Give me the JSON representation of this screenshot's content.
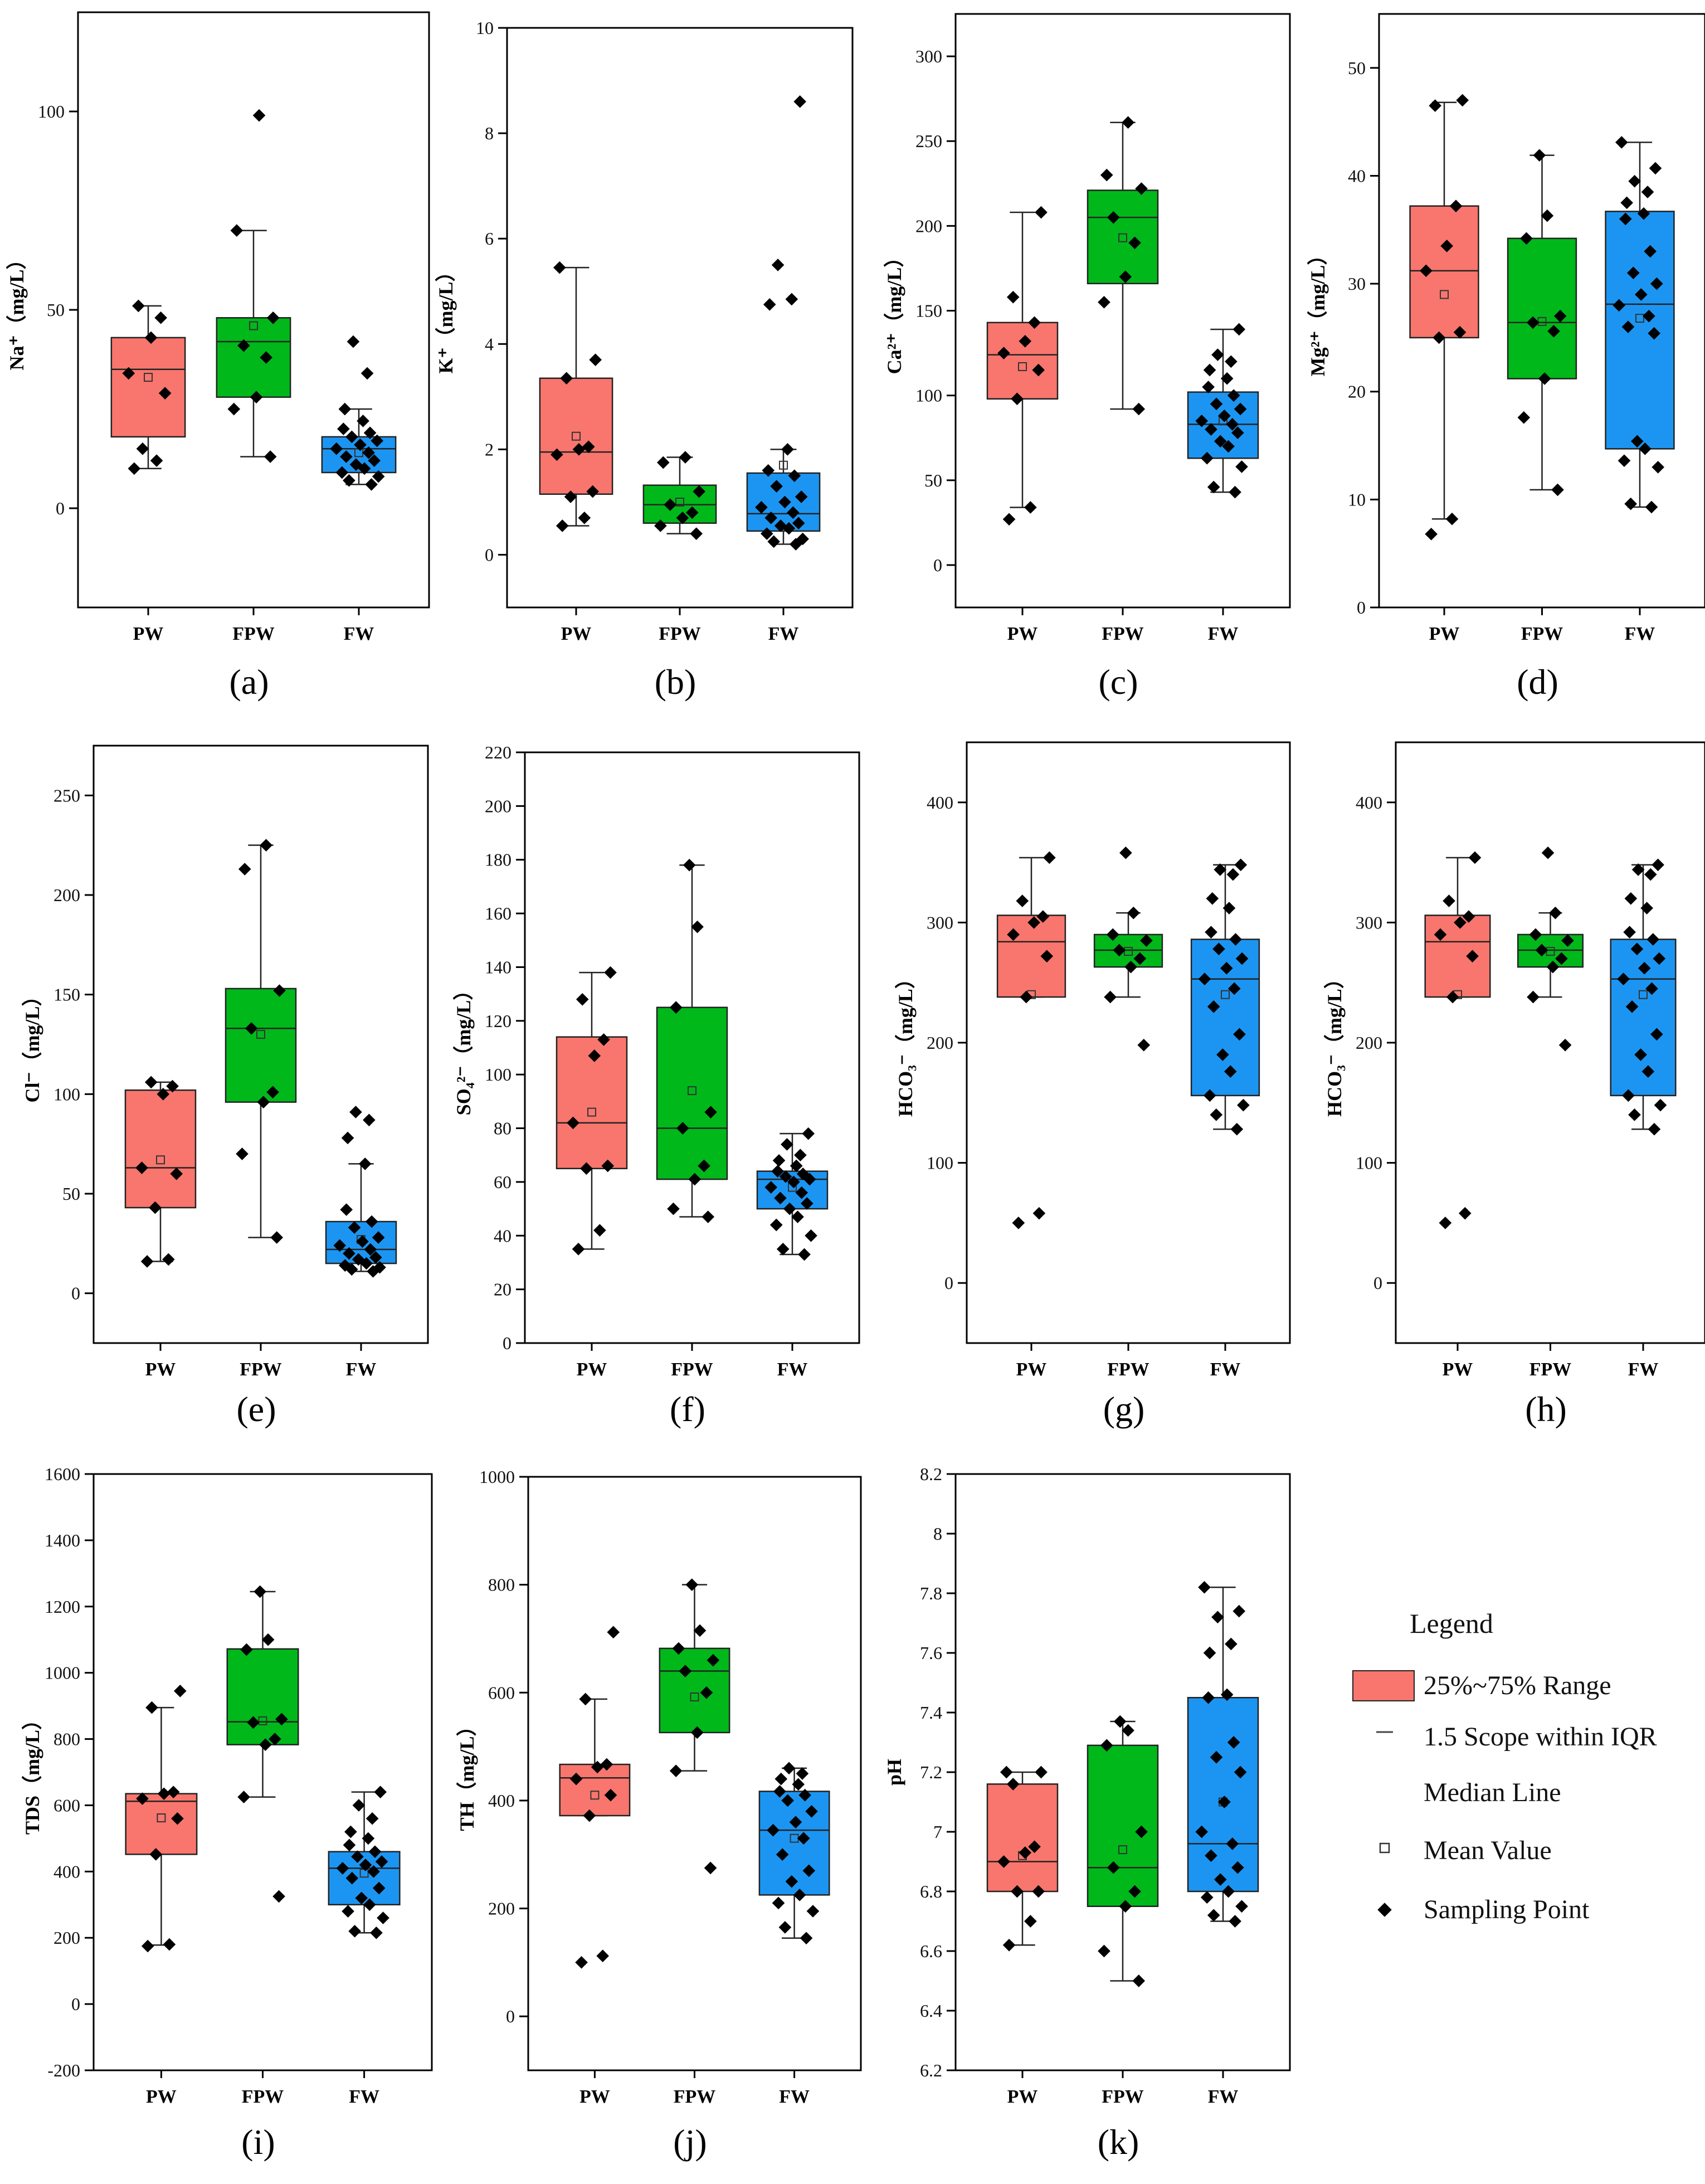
{
  "figure": {
    "panels": [
      "(a)",
      "(b)",
      "(c)",
      "(d)",
      "(e)",
      "(f)",
      "(g)",
      "(h)",
      "(i)",
      "(j)",
      "(k)"
    ]
  },
  "legend": {
    "title": "Legend",
    "items": [
      "25%~75% Range",
      "1.5 Scope within IQR",
      "Median Line",
      "Mean Value",
      "Sampling Point"
    ]
  },
  "colors": {
    "PW": "#f8766d",
    "FPW": "#00b81a",
    "FW": "#1c95f2"
  },
  "chart_data": [
    {
      "type": "box",
      "panel": "(a)",
      "ylabel": "Na⁺（mg/L）",
      "ylim": [
        -25,
        125
      ],
      "yticks": [
        0,
        50,
        100
      ],
      "categories": [
        "PW",
        "FPW",
        "FW"
      ],
      "boxes": [
        {
          "name": "PW",
          "q1": 18,
          "median": 35,
          "q3": 43,
          "whisker_low": 10,
          "whisker_high": 51,
          "mean": 33,
          "points": [
            10,
            12,
            15,
            29,
            34,
            43,
            48,
            51
          ]
        },
        {
          "name": "FPW",
          "q1": 28,
          "median": 42,
          "q3": 48,
          "whisker_low": 13,
          "whisker_high": 70,
          "mean": 46,
          "points": [
            13,
            25,
            28,
            38,
            41,
            48,
            70,
            99
          ]
        },
        {
          "name": "FW",
          "q1": 9,
          "median": 15,
          "q3": 18,
          "whisker_low": 6,
          "whisker_high": 25,
          "mean": 14,
          "points": [
            6,
            7,
            8,
            9,
            10,
            11,
            12,
            13,
            14,
            15,
            16,
            17,
            18,
            19,
            20,
            22,
            25,
            34,
            42
          ]
        }
      ]
    },
    {
      "type": "box",
      "panel": "(b)",
      "ylabel": "K⁺（mg/L）",
      "ylim": [
        -1,
        10
      ],
      "yticks": [
        0,
        2,
        4,
        6,
        8,
        10
      ],
      "categories": [
        "PW",
        "FPW",
        "FW"
      ],
      "boxes": [
        {
          "name": "PW",
          "q1": 1.15,
          "median": 1.95,
          "q3": 3.35,
          "whisker_low": 0.55,
          "whisker_high": 5.45,
          "mean": 2.25,
          "points": [
            0.55,
            0.7,
            1.1,
            1.2,
            1.9,
            2.0,
            2.05,
            3.35,
            3.7,
            5.45
          ]
        },
        {
          "name": "FPW",
          "q1": 0.6,
          "median": 0.95,
          "q3": 1.32,
          "whisker_low": 0.4,
          "whisker_high": 1.85,
          "mean": 1.0,
          "points": [
            0.4,
            0.55,
            0.7,
            0.8,
            0.95,
            1.2,
            1.75,
            1.85
          ]
        },
        {
          "name": "FW",
          "q1": 0.45,
          "median": 0.78,
          "q3": 1.55,
          "whisker_low": 0.2,
          "whisker_high": 2.0,
          "mean": 1.7,
          "points": [
            0.2,
            0.25,
            0.3,
            0.4,
            0.5,
            0.55,
            0.6,
            0.7,
            0.8,
            0.9,
            1.0,
            1.1,
            1.3,
            1.5,
            1.6,
            2.0,
            4.75,
            4.85,
            5.5,
            8.6
          ]
        }
      ]
    },
    {
      "type": "box",
      "panel": "(c)",
      "ylabel": "Ca²⁺（mg/L）",
      "ylim": [
        -25,
        325
      ],
      "yticks": [
        0,
        50,
        100,
        150,
        200,
        250,
        300
      ],
      "categories": [
        "PW",
        "FPW",
        "FW"
      ],
      "boxes": [
        {
          "name": "PW",
          "q1": 98,
          "median": 124,
          "q3": 143,
          "whisker_low": 34,
          "whisker_high": 208,
          "mean": 117,
          "points": [
            27,
            34,
            98,
            115,
            125,
            132,
            143,
            158,
            208
          ]
        },
        {
          "name": "FPW",
          "q1": 166,
          "median": 205,
          "q3": 221,
          "whisker_low": 92,
          "whisker_high": 261,
          "mean": 193,
          "points": [
            92,
            155,
            170,
            190,
            205,
            222,
            230,
            261
          ]
        },
        {
          "name": "FW",
          "q1": 63,
          "median": 83,
          "q3": 102,
          "whisker_low": 43,
          "whisker_high": 139,
          "mean": 85,
          "points": [
            43,
            46,
            58,
            63,
            70,
            73,
            78,
            80,
            83,
            85,
            88,
            92,
            95,
            100,
            105,
            110,
            115,
            120,
            124,
            139
          ]
        }
      ]
    },
    {
      "type": "box",
      "panel": "(d)",
      "ylabel": "Mg²⁺（mg/L）",
      "ylim": [
        0,
        55
      ],
      "yticks": [
        0,
        10,
        20,
        30,
        40,
        50
      ],
      "categories": [
        "PW",
        "FPW",
        "FW"
      ],
      "boxes": [
        {
          "name": "PW",
          "q1": 25,
          "median": 31.2,
          "q3": 37.2,
          "whisker_low": 8.2,
          "whisker_high": 46.8,
          "mean": 29,
          "points": [
            6.8,
            8.2,
            25,
            25.5,
            31.2,
            33.5,
            37.2,
            46.5,
            47
          ]
        },
        {
          "name": "FPW",
          "q1": 21.2,
          "median": 26.4,
          "q3": 34.2,
          "whisker_low": 10.9,
          "whisker_high": 41.9,
          "mean": 26.5,
          "points": [
            10.9,
            17.6,
            21.2,
            25.6,
            26.4,
            27,
            34.2,
            36.3,
            41.9
          ]
        },
        {
          "name": "FW",
          "q1": 14.7,
          "median": 28.1,
          "q3": 36.7,
          "whisker_low": 9.3,
          "whisker_high": 43.1,
          "mean": 26.8,
          "points": [
            9.3,
            9.6,
            13,
            13.6,
            14.7,
            15.4,
            25.4,
            26,
            27,
            28,
            29,
            30,
            31,
            33,
            36,
            36.5,
            37.5,
            38.5,
            39.5,
            40.7,
            43.1
          ]
        }
      ]
    },
    {
      "type": "box",
      "panel": "(e)",
      "ylabel": "Cl⁻（mg/L）",
      "ylim": [
        -25,
        275
      ],
      "yticks": [
        0,
        50,
        100,
        150,
        200,
        250
      ],
      "categories": [
        "PW",
        "FPW",
        "FW"
      ],
      "boxes": [
        {
          "name": "PW",
          "q1": 43,
          "median": 63,
          "q3": 102,
          "whisker_low": 16,
          "whisker_high": 106,
          "mean": 67,
          "points": [
            16,
            17,
            43,
            60,
            63,
            100,
            104,
            106
          ]
        },
        {
          "name": "FPW",
          "q1": 96,
          "median": 133,
          "q3": 153,
          "whisker_low": 28,
          "whisker_high": 225,
          "mean": 130,
          "points": [
            28,
            70,
            96,
            101,
            133,
            152,
            213,
            225
          ]
        },
        {
          "name": "FW",
          "q1": 15,
          "median": 22,
          "q3": 36,
          "whisker_low": 11,
          "whisker_high": 65,
          "mean": 27,
          "points": [
            11,
            12,
            13,
            14,
            15,
            17,
            18,
            20,
            22,
            24,
            26,
            28,
            33,
            36,
            42,
            65,
            78,
            87,
            91
          ]
        }
      ]
    },
    {
      "type": "box",
      "panel": "(f)",
      "ylabel": "SO₄²⁻（mg/L）",
      "ylim": [
        0,
        220
      ],
      "yticks": [
        0,
        20,
        40,
        60,
        80,
        100,
        120,
        140,
        160,
        180,
        200,
        220
      ],
      "categories": [
        "PW",
        "FPW",
        "FW"
      ],
      "boxes": [
        {
          "name": "PW",
          "q1": 65,
          "median": 82,
          "q3": 114,
          "whisker_low": 35,
          "whisker_high": 138,
          "mean": 86,
          "points": [
            35,
            42,
            65,
            66,
            82,
            107,
            113,
            128,
            138
          ]
        },
        {
          "name": "FPW",
          "q1": 61,
          "median": 80,
          "q3": 125,
          "whisker_low": 47,
          "whisker_high": 178,
          "mean": 94,
          "points": [
            47,
            50,
            61,
            66,
            80,
            86,
            125,
            155,
            178
          ]
        },
        {
          "name": "FW",
          "q1": 50,
          "median": 61,
          "q3": 64,
          "whisker_low": 33,
          "whisker_high": 78,
          "mean": 58,
          "points": [
            33,
            35,
            40,
            44,
            47,
            50,
            52,
            54,
            56,
            58,
            60,
            61,
            62,
            63,
            64,
            66,
            68,
            70,
            74,
            78
          ]
        }
      ]
    },
    {
      "type": "box",
      "panel": "(g)",
      "ylabel": "HCO₃⁻（mg/L）",
      "ylim": [
        -50,
        450
      ],
      "yticks": [
        0,
        100,
        200,
        300,
        400
      ],
      "categories": [
        "PW",
        "FPW",
        "FW"
      ],
      "boxes": [
        {
          "name": "PW",
          "q1": 238,
          "median": 284,
          "q3": 306,
          "whisker_low": 238,
          "whisker_high": 354,
          "mean": 240,
          "points": [
            50,
            58,
            238,
            272,
            290,
            300,
            305,
            318,
            354
          ]
        },
        {
          "name": "FPW",
          "q1": 263,
          "median": 277,
          "q3": 290,
          "whisker_low": 238,
          "whisker_high": 308,
          "mean": 276,
          "points": [
            198,
            238,
            263,
            270,
            277,
            285,
            290,
            308,
            358
          ]
        },
        {
          "name": "FW",
          "q1": 156,
          "median": 253,
          "q3": 286,
          "whisker_low": 128,
          "whisker_high": 348,
          "mean": 240,
          "points": [
            128,
            140,
            148,
            156,
            176,
            190,
            207,
            230,
            245,
            253,
            262,
            270,
            278,
            286,
            292,
            312,
            320,
            340,
            344,
            348
          ]
        }
      ]
    },
    {
      "type": "box",
      "panel": "(h)",
      "ylabel": "HCO₃⁻（mg/L）",
      "ylim": [
        -50,
        450
      ],
      "yticks": [
        0,
        100,
        200,
        300,
        400
      ],
      "categories": [
        "PW",
        "FPW",
        "FW"
      ],
      "boxes": [
        {
          "name": "PW",
          "q1": 238,
          "median": 284,
          "q3": 306,
          "whisker_low": 238,
          "whisker_high": 354,
          "mean": 240,
          "points": [
            50,
            58,
            238,
            272,
            290,
            300,
            305,
            318,
            354
          ]
        },
        {
          "name": "FPW",
          "q1": 263,
          "median": 277,
          "q3": 290,
          "whisker_low": 238,
          "whisker_high": 308,
          "mean": 276,
          "points": [
            198,
            238,
            263,
            270,
            277,
            285,
            290,
            308,
            358
          ]
        },
        {
          "name": "FW",
          "q1": 156,
          "median": 253,
          "q3": 286,
          "whisker_low": 128,
          "whisker_high": 348,
          "mean": 240,
          "points": [
            128,
            140,
            148,
            156,
            176,
            190,
            207,
            230,
            245,
            253,
            262,
            270,
            278,
            286,
            292,
            312,
            320,
            340,
            344,
            348
          ]
        }
      ]
    },
    {
      "type": "box",
      "panel": "(i)",
      "ylabel": "TDS（mg/L）",
      "ylim": [
        -200,
        1600
      ],
      "yticks": [
        -200,
        0,
        200,
        400,
        600,
        800,
        1000,
        1200,
        1400,
        1600
      ],
      "categories": [
        "PW",
        "FPW",
        "FW"
      ],
      "boxes": [
        {
          "name": "PW",
          "q1": 452,
          "median": 612,
          "q3": 635,
          "whisker_low": 178,
          "whisker_high": 895,
          "mean": 562,
          "points": [
            175,
            180,
            452,
            560,
            620,
            635,
            640,
            895,
            945
          ]
        },
        {
          "name": "FPW",
          "q1": 783,
          "median": 852,
          "q3": 1072,
          "whisker_low": 625,
          "whisker_high": 1245,
          "mean": 855,
          "points": [
            325,
            625,
            783,
            800,
            850,
            860,
            1070,
            1100,
            1245
          ]
        },
        {
          "name": "FW",
          "q1": 300,
          "median": 410,
          "q3": 460,
          "whisker_low": 215,
          "whisker_high": 640,
          "mean": 395,
          "points": [
            215,
            220,
            260,
            280,
            300,
            320,
            350,
            380,
            400,
            410,
            420,
            430,
            445,
            460,
            480,
            500,
            520,
            560,
            600,
            640
          ]
        }
      ]
    },
    {
      "type": "box",
      "panel": "(j)",
      "ylabel": "TH（mg/L）",
      "ylim": [
        -100,
        1000
      ],
      "yticks": [
        0,
        200,
        400,
        600,
        800,
        1000
      ],
      "categories": [
        "PW",
        "FPW",
        "FW"
      ],
      "boxes": [
        {
          "name": "PW",
          "q1": 372,
          "median": 442,
          "q3": 467,
          "whisker_low": 372,
          "whisker_high": 588,
          "mean": 410,
          "points": [
            100,
            112,
            372,
            410,
            440,
            462,
            467,
            588,
            712
          ]
        },
        {
          "name": "FPW",
          "q1": 526,
          "median": 640,
          "q3": 682,
          "whisker_low": 455,
          "whisker_high": 800,
          "mean": 592,
          "points": [
            275,
            455,
            526,
            600,
            640,
            660,
            682,
            715,
            800
          ]
        },
        {
          "name": "FW",
          "q1": 225,
          "median": 345,
          "q3": 417,
          "whisker_low": 145,
          "whisker_high": 460,
          "mean": 330,
          "points": [
            145,
            165,
            195,
            210,
            225,
            250,
            270,
            300,
            330,
            345,
            360,
            380,
            400,
            410,
            417,
            430,
            440,
            450,
            460
          ]
        }
      ]
    },
    {
      "type": "box",
      "panel": "(k)",
      "ylabel": "pH",
      "ylim": [
        6.2,
        8.2
      ],
      "yticks": [
        6.2,
        6.4,
        6.6,
        6.8,
        7.0,
        7.2,
        7.4,
        7.6,
        7.8,
        8.0,
        8.2
      ],
      "categories": [
        "PW",
        "FPW",
        "FW"
      ],
      "boxes": [
        {
          "name": "PW",
          "q1": 6.8,
          "median": 6.9,
          "q3": 7.16,
          "whisker_low": 6.62,
          "whisker_high": 7.2,
          "mean": 6.92,
          "points": [
            6.62,
            6.7,
            6.8,
            6.8,
            6.9,
            6.93,
            6.95,
            7.16,
            7.2,
            7.2
          ]
        },
        {
          "name": "FPW",
          "q1": 6.75,
          "median": 6.88,
          "q3": 7.29,
          "whisker_low": 6.5,
          "whisker_high": 7.37,
          "mean": 6.94,
          "points": [
            6.5,
            6.6,
            6.75,
            6.8,
            6.88,
            7.0,
            7.29,
            7.34,
            7.37
          ]
        },
        {
          "name": "FW",
          "q1": 6.8,
          "median": 6.96,
          "q3": 7.45,
          "whisker_low": 6.7,
          "whisker_high": 7.82,
          "mean": 7.1,
          "points": [
            6.7,
            6.72,
            6.75,
            6.78,
            6.8,
            6.84,
            6.88,
            6.92,
            6.96,
            7.0,
            7.1,
            7.2,
            7.25,
            7.3,
            7.45,
            7.46,
            7.6,
            7.63,
            7.72,
            7.74,
            7.82
          ]
        }
      ]
    }
  ]
}
